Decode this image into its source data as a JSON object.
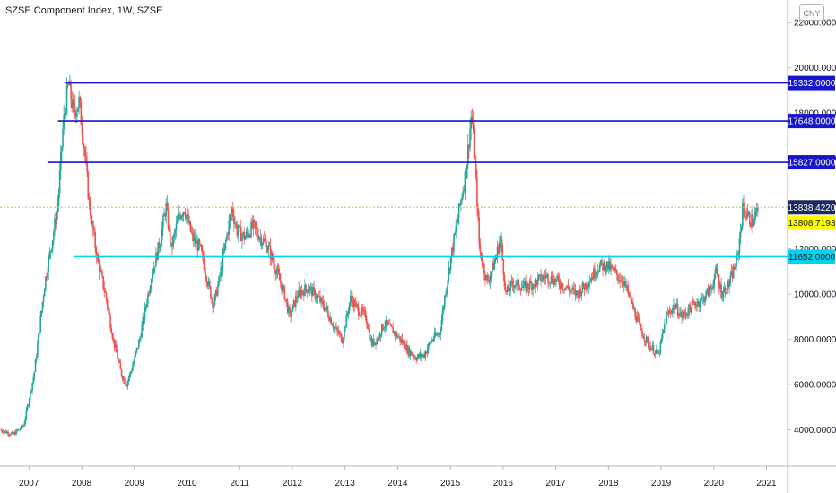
{
  "header": {
    "title": "SZSE Component Index, 1W, SZSE"
  },
  "currency_button": {
    "label": "CNY"
  },
  "colors": {
    "up": "#26a69a",
    "down": "#ef5350",
    "resistance": "#1717c9",
    "support": "#00d3f0",
    "last_price_line": "#c5c23a",
    "last_price_tag": "#1d2a5c",
    "prev_close_tag": "#ffff00",
    "axis_text": "#131722",
    "grid": "#e0e3eb"
  },
  "chart_data": {
    "type": "candlestick",
    "title": "SZSE Component Index, 1W, SZSE",
    "ylim": [
      2400,
      23000
    ],
    "y_ticks": [
      "4000.0000",
      "6000.0000",
      "8000.0000",
      "10000.0000",
      "12000.0000",
      "14000.0000",
      "16000.0000",
      "18000.0000",
      "20000.0000",
      "22000.0000"
    ],
    "y_tick_values": [
      4000,
      6000,
      8000,
      10000,
      12000,
      14000,
      16000,
      18000,
      20000,
      22000
    ],
    "x_range": [
      2006.45,
      2021.4
    ],
    "x_ticks": [
      "2007",
      "2008",
      "2009",
      "2010",
      "2011",
      "2012",
      "2013",
      "2014",
      "2015",
      "2016",
      "2017",
      "2018",
      "2019",
      "2020",
      "2021"
    ],
    "x_tick_values": [
      2007,
      2008,
      2009,
      2010,
      2011,
      2012,
      2013,
      2014,
      2015,
      2016,
      2017,
      2018,
      2019,
      2020,
      2021
    ],
    "trend_path": [
      [
        2006.45,
        4000
      ],
      [
        2006.7,
        3800
      ],
      [
        2006.9,
        4200
      ],
      [
        2007.1,
        6500
      ],
      [
        2007.3,
        10500
      ],
      [
        2007.45,
        12500
      ],
      [
        2007.55,
        14000
      ],
      [
        2007.65,
        17500
      ],
      [
        2007.75,
        19300
      ],
      [
        2007.85,
        18000
      ],
      [
        2007.95,
        18500
      ],
      [
        2008.05,
        16500
      ],
      [
        2008.15,
        13800
      ],
      [
        2008.3,
        11500
      ],
      [
        2008.45,
        10000
      ],
      [
        2008.6,
        8000
      ],
      [
        2008.75,
        6500
      ],
      [
        2008.85,
        6000
      ],
      [
        2008.95,
        6700
      ],
      [
        2009.1,
        8000
      ],
      [
        2009.3,
        10500
      ],
      [
        2009.5,
        12500
      ],
      [
        2009.6,
        13900
      ],
      [
        2009.7,
        12000
      ],
      [
        2009.85,
        13500
      ],
      [
        2009.95,
        13800
      ],
      [
        2010.1,
        12500
      ],
      [
        2010.25,
        12000
      ],
      [
        2010.4,
        10500
      ],
      [
        2010.5,
        9500
      ],
      [
        2010.6,
        10500
      ],
      [
        2010.75,
        12500
      ],
      [
        2010.85,
        13800
      ],
      [
        2010.95,
        12800
      ],
      [
        2011.1,
        12500
      ],
      [
        2011.25,
        13000
      ],
      [
        2011.4,
        12500
      ],
      [
        2011.55,
        12000
      ],
      [
        2011.7,
        11000
      ],
      [
        2011.85,
        10000
      ],
      [
        2011.95,
        9000
      ],
      [
        2012.1,
        10000
      ],
      [
        2012.3,
        10300
      ],
      [
        2012.5,
        9800
      ],
      [
        2012.65,
        9300
      ],
      [
        2012.8,
        8500
      ],
      [
        2012.95,
        8000
      ],
      [
        2013.1,
        9800
      ],
      [
        2013.25,
        9300
      ],
      [
        2013.4,
        9000
      ],
      [
        2013.5,
        7800
      ],
      [
        2013.6,
        8000
      ],
      [
        2013.75,
        8700
      ],
      [
        2013.9,
        8400
      ],
      [
        2014.05,
        8000
      ],
      [
        2014.2,
        7500
      ],
      [
        2014.35,
        7200
      ],
      [
        2014.5,
        7300
      ],
      [
        2014.65,
        8000
      ],
      [
        2014.8,
        8300
      ],
      [
        2014.9,
        10000
      ],
      [
        2015.0,
        11500
      ],
      [
        2015.15,
        13500
      ],
      [
        2015.3,
        15500
      ],
      [
        2015.4,
        18000
      ],
      [
        2015.5,
        14500
      ],
      [
        2015.55,
        12000
      ],
      [
        2015.7,
        10500
      ],
      [
        2015.85,
        11500
      ],
      [
        2015.95,
        12500
      ],
      [
        2016.05,
        10000
      ],
      [
        2016.2,
        10500
      ],
      [
        2016.4,
        10300
      ],
      [
        2016.6,
        10500
      ],
      [
        2016.8,
        10800
      ],
      [
        2017.0,
        10600
      ],
      [
        2017.2,
        10300
      ],
      [
        2017.4,
        10000
      ],
      [
        2017.6,
        10500
      ],
      [
        2017.8,
        11200
      ],
      [
        2017.95,
        11300
      ],
      [
        2018.1,
        11000
      ],
      [
        2018.3,
        10500
      ],
      [
        2018.45,
        9500
      ],
      [
        2018.6,
        8500
      ],
      [
        2018.75,
        7800
      ],
      [
        2018.95,
        7300
      ],
      [
        2019.1,
        9000
      ],
      [
        2019.25,
        9500
      ],
      [
        2019.4,
        9000
      ],
      [
        2019.6,
        9500
      ],
      [
        2019.8,
        9800
      ],
      [
        2019.95,
        10300
      ],
      [
        2020.05,
        11000
      ],
      [
        2020.15,
        10000
      ],
      [
        2020.3,
        10500
      ],
      [
        2020.45,
        11600
      ],
      [
        2020.55,
        13800
      ],
      [
        2020.65,
        13400
      ],
      [
        2020.75,
        13200
      ],
      [
        2020.85,
        13838
      ]
    ],
    "horizontal_levels": [
      {
        "value": 19332,
        "label": "19332.0000",
        "x_start": 2007.7,
        "style": "resistance"
      },
      {
        "value": 17648,
        "label": "17648.0000",
        "x_start": 2007.55,
        "style": "resistance"
      },
      {
        "value": 15827,
        "label": "15827.0000",
        "x_start": 2007.35,
        "style": "resistance"
      },
      {
        "value": 11652,
        "label": "11652.0000",
        "x_start": 2007.85,
        "style": "support"
      }
    ],
    "last_price": {
      "value": 13838.422,
      "label": "13838.4220"
    },
    "prev_close": {
      "value": 13808.7193,
      "label": "13808.7193"
    }
  }
}
